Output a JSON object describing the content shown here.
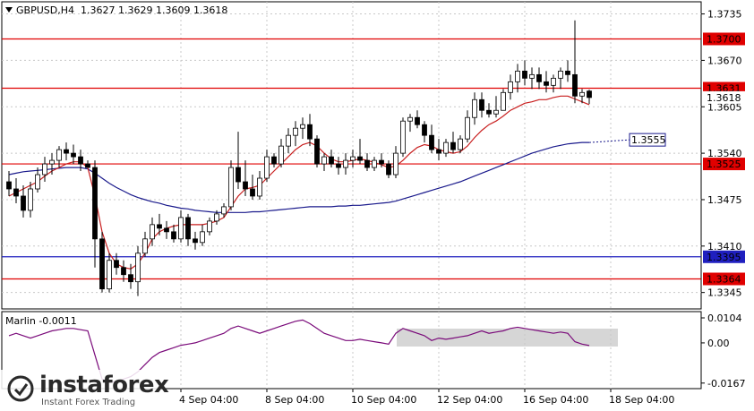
{
  "header": {
    "symbol": "GBPUSD,H4",
    "ohlc": "1.3627 1.3629 1.3609 1.3618"
  },
  "indicator": {
    "title": "Marlin -0.0011"
  },
  "logo": {
    "name": "instaforex",
    "tagline": "Instant Forex Trading",
    "icon": "instaforex-logo-icon"
  },
  "colors": {
    "level_line": "#e00000",
    "ma_red": "#c81e1e",
    "ma_blue": "#1a1a8c",
    "blue_level": "#1f1fbf",
    "osc": "#7a0a7a"
  },
  "chart_data": {
    "type": "candlestick",
    "symbol": "GBPUSD",
    "timeframe": "H4",
    "y_range": [
      1.3322,
      1.3752
    ],
    "price_ticks": [
      "1.3735",
      "1.3670",
      "1.3605",
      "1.3540",
      "1.3475",
      "1.3410",
      "1.3345"
    ],
    "time_ticks": [
      {
        "label": "4 Sep 04:00",
        "bar": 24
      },
      {
        "label": "8 Sep 04:00",
        "bar": 36
      },
      {
        "label": "10 Sep 04:00",
        "bar": 48
      },
      {
        "label": "12 Sep 04:00",
        "bar": 60
      },
      {
        "label": "16 Sep 04:00",
        "bar": 72
      },
      {
        "label": "18 Sep 04:00",
        "bar": 84
      }
    ],
    "levels": [
      {
        "label": "1.3700",
        "value": 1.37,
        "color": "#e00000"
      },
      {
        "label": "1.3631",
        "value": 1.3631,
        "color": "#e00000"
      },
      {
        "label": "1.3525",
        "value": 1.3525,
        "color": "#e00000"
      },
      {
        "label": "1.3395",
        "value": 1.3395,
        "color": "#1f1fbf"
      },
      {
        "label": "1.3364",
        "value": 1.3364,
        "color": "#e00000"
      }
    ],
    "current_price": "1.3618",
    "ma_blue_label": "1.3555",
    "candles": [
      [
        1.35,
        1.3515,
        1.348,
        1.349
      ],
      [
        1.349,
        1.3505,
        1.347,
        1.348
      ],
      [
        1.348,
        1.3495,
        1.345,
        1.346
      ],
      [
        1.346,
        1.35,
        1.345,
        1.349
      ],
      [
        1.349,
        1.352,
        1.3485,
        1.351
      ],
      [
        1.351,
        1.3535,
        1.35,
        1.3525
      ],
      [
        1.3525,
        1.354,
        1.351,
        1.353
      ],
      [
        1.353,
        1.355,
        1.352,
        1.3545
      ],
      [
        1.3545,
        1.3555,
        1.353,
        1.354
      ],
      [
        1.354,
        1.3552,
        1.3525,
        1.3535
      ],
      [
        1.3535,
        1.3545,
        1.3515,
        1.3525
      ],
      [
        1.3525,
        1.353,
        1.352,
        1.352
      ],
      [
        1.352,
        1.353,
        1.338,
        1.342
      ],
      [
        1.342,
        1.343,
        1.3345,
        1.335
      ],
      [
        1.335,
        1.34,
        1.3345,
        1.339
      ],
      [
        1.339,
        1.34,
        1.337,
        1.338
      ],
      [
        1.338,
        1.339,
        1.336,
        1.337
      ],
      [
        1.337,
        1.3385,
        1.335,
        1.336
      ],
      [
        1.336,
        1.341,
        1.334,
        1.34
      ],
      [
        1.34,
        1.343,
        1.3395,
        1.342
      ],
      [
        1.342,
        1.345,
        1.341,
        1.344
      ],
      [
        1.344,
        1.3455,
        1.3425,
        1.3435
      ],
      [
        1.3435,
        1.3445,
        1.342,
        1.343
      ],
      [
        1.343,
        1.344,
        1.3415,
        1.342
      ],
      [
        1.342,
        1.346,
        1.3415,
        1.345
      ],
      [
        1.345,
        1.3455,
        1.341,
        1.342
      ],
      [
        1.342,
        1.343,
        1.3405,
        1.3415
      ],
      [
        1.3415,
        1.344,
        1.341,
        1.343
      ],
      [
        1.343,
        1.345,
        1.3425,
        1.3445
      ],
      [
        1.3445,
        1.346,
        1.344,
        1.3455
      ],
      [
        1.3455,
        1.347,
        1.345,
        1.3465
      ],
      [
        1.3465,
        1.353,
        1.346,
        1.352
      ],
      [
        1.352,
        1.357,
        1.349,
        1.35
      ],
      [
        1.35,
        1.353,
        1.348,
        1.349
      ],
      [
        1.349,
        1.351,
        1.3475,
        1.348
      ],
      [
        1.348,
        1.3515,
        1.3475,
        1.3505
      ],
      [
        1.3505,
        1.3545,
        1.35,
        1.3535
      ],
      [
        1.3535,
        1.354,
        1.352,
        1.3525
      ],
      [
        1.3525,
        1.356,
        1.352,
        1.355
      ],
      [
        1.355,
        1.3575,
        1.354,
        1.3565
      ],
      [
        1.3565,
        1.3585,
        1.355,
        1.3575
      ],
      [
        1.3575,
        1.359,
        1.356,
        1.358
      ],
      [
        1.358,
        1.3595,
        1.355,
        1.356
      ],
      [
        1.356,
        1.3565,
        1.352,
        1.3525
      ],
      [
        1.3525,
        1.354,
        1.3515,
        1.3535
      ],
      [
        1.3535,
        1.3545,
        1.352,
        1.3525
      ],
      [
        1.3525,
        1.3535,
        1.351,
        1.352
      ],
      [
        1.352,
        1.354,
        1.351,
        1.353
      ],
      [
        1.353,
        1.3545,
        1.352,
        1.3535
      ],
      [
        1.3535,
        1.356,
        1.3525,
        1.353
      ],
      [
        1.353,
        1.354,
        1.3515,
        1.352
      ],
      [
        1.352,
        1.3535,
        1.3515,
        1.353
      ],
      [
        1.353,
        1.354,
        1.352,
        1.3525
      ],
      [
        1.3525,
        1.353,
        1.3505,
        1.351
      ],
      [
        1.351,
        1.355,
        1.3505,
        1.354
      ],
      [
        1.354,
        1.359,
        1.3535,
        1.3585
      ],
      [
        1.3585,
        1.3595,
        1.357,
        1.359
      ],
      [
        1.359,
        1.36,
        1.3575,
        1.358
      ],
      [
        1.358,
        1.3585,
        1.3555,
        1.3565
      ],
      [
        1.3565,
        1.358,
        1.354,
        1.3545
      ],
      [
        1.3545,
        1.356,
        1.353,
        1.354
      ],
      [
        1.354,
        1.356,
        1.3535,
        1.3555
      ],
      [
        1.3555,
        1.357,
        1.354,
        1.3545
      ],
      [
        1.3545,
        1.3565,
        1.354,
        1.356
      ],
      [
        1.356,
        1.36,
        1.3555,
        1.359
      ],
      [
        1.359,
        1.3625,
        1.358,
        1.3615
      ],
      [
        1.3615,
        1.3625,
        1.359,
        1.36
      ],
      [
        1.36,
        1.361,
        1.359,
        1.3595
      ],
      [
        1.3595,
        1.362,
        1.359,
        1.36
      ],
      [
        1.36,
        1.363,
        1.36,
        1.3625
      ],
      [
        1.3625,
        1.365,
        1.3615,
        1.364
      ],
      [
        1.364,
        1.3665,
        1.3625,
        1.3655
      ],
      [
        1.3655,
        1.367,
        1.3635,
        1.3645
      ],
      [
        1.3645,
        1.366,
        1.363,
        1.365
      ],
      [
        1.365,
        1.366,
        1.363,
        1.364
      ],
      [
        1.364,
        1.3655,
        1.3625,
        1.3635
      ],
      [
        1.3635,
        1.365,
        1.3625,
        1.3645
      ],
      [
        1.3645,
        1.366,
        1.363,
        1.3655
      ],
      [
        1.3655,
        1.367,
        1.364,
        1.365
      ],
      [
        1.365,
        1.3726,
        1.361,
        1.362
      ],
      [
        1.362,
        1.363,
        1.361,
        1.3625
      ],
      [
        1.3627,
        1.3629,
        1.3609,
        1.3618
      ]
    ],
    "ma_red": [
      1.348,
      1.3485,
      1.349,
      1.3495,
      1.35,
      1.3508,
      1.3515,
      1.352,
      1.3525,
      1.3528,
      1.3528,
      1.352,
      1.348,
      1.343,
      1.34,
      1.3385,
      1.338,
      1.3378,
      1.3385,
      1.34,
      1.342,
      1.343,
      1.3435,
      1.3438,
      1.344,
      1.344,
      1.344,
      1.344,
      1.3442,
      1.3445,
      1.345,
      1.3465,
      1.348,
      1.349,
      1.3492,
      1.3495,
      1.3505,
      1.3515,
      1.3525,
      1.3535,
      1.3545,
      1.3552,
      1.3555,
      1.355,
      1.354,
      1.3532,
      1.3528,
      1.3528,
      1.353,
      1.3532,
      1.353,
      1.3527,
      1.3524,
      1.352,
      1.3522,
      1.353,
      1.354,
      1.3548,
      1.3552,
      1.355,
      1.3545,
      1.3542,
      1.354,
      1.3542,
      1.355,
      1.3562,
      1.3572,
      1.358,
      1.3585,
      1.3592,
      1.36,
      1.3605,
      1.361,
      1.3612,
      1.3615,
      1.3615,
      1.3618,
      1.362,
      1.362,
      1.3616,
      1.3612,
      1.3608
    ],
    "ma_blue": [
      1.351,
      1.3512,
      1.3514,
      1.3515,
      1.3516,
      1.3517,
      1.3518,
      1.3519,
      1.352,
      1.352,
      1.352,
      1.3518,
      1.3512,
      1.3505,
      1.3498,
      1.3492,
      1.3487,
      1.3482,
      1.3478,
      1.3475,
      1.3472,
      1.347,
      1.3467,
      1.3465,
      1.3463,
      1.3462,
      1.346,
      1.3459,
      1.3458,
      1.3457,
      1.3457,
      1.3457,
      1.3457,
      1.3457,
      1.3458,
      1.3458,
      1.3459,
      1.346,
      1.3461,
      1.3462,
      1.3463,
      1.3464,
      1.3465,
      1.3465,
      1.3465,
      1.3465,
      1.3466,
      1.3466,
      1.3467,
      1.3467,
      1.3468,
      1.3469,
      1.347,
      1.3471,
      1.3473,
      1.3476,
      1.3479,
      1.3482,
      1.3485,
      1.3488,
      1.3491,
      1.3494,
      1.3497,
      1.35,
      1.3504,
      1.3508,
      1.3512,
      1.3516,
      1.352,
      1.3524,
      1.3528,
      1.3532,
      1.3536,
      1.354,
      1.3543,
      1.3546,
      1.3549,
      1.3551,
      1.3553,
      1.3554,
      1.3555,
      1.3555
    ],
    "oscillator": {
      "name": "Marlin",
      "value": "-0.0011",
      "y_range": [
        -0.019,
        0.013
      ],
      "ticks": [
        "0.0104",
        "0.00",
        "-0.0167"
      ],
      "values": [
        0.003,
        0.004,
        0.003,
        0.002,
        0.003,
        0.004,
        0.005,
        0.0055,
        0.006,
        0.006,
        0.0055,
        0.005,
        -0.005,
        -0.015,
        -0.0165,
        -0.016,
        -0.015,
        -0.014,
        -0.012,
        -0.009,
        -0.006,
        -0.004,
        -0.003,
        -0.002,
        -0.001,
        -0.0005,
        0.0,
        0.001,
        0.002,
        0.003,
        0.004,
        0.006,
        0.007,
        0.006,
        0.005,
        0.004,
        0.005,
        0.006,
        0.007,
        0.008,
        0.009,
        0.0095,
        0.008,
        0.006,
        0.004,
        0.003,
        0.002,
        0.001,
        0.001,
        0.0015,
        0.001,
        0.0005,
        0.0,
        -0.0005,
        0.004,
        0.006,
        0.005,
        0.004,
        0.003,
        0.001,
        0.002,
        0.0015,
        0.002,
        0.0025,
        0.003,
        0.004,
        0.005,
        0.004,
        0.0045,
        0.005,
        0.006,
        0.0065,
        0.006,
        0.0055,
        0.005,
        0.0045,
        0.004,
        0.0045,
        0.004,
        0.0005,
        -0.0005,
        -0.0011
      ]
    }
  }
}
